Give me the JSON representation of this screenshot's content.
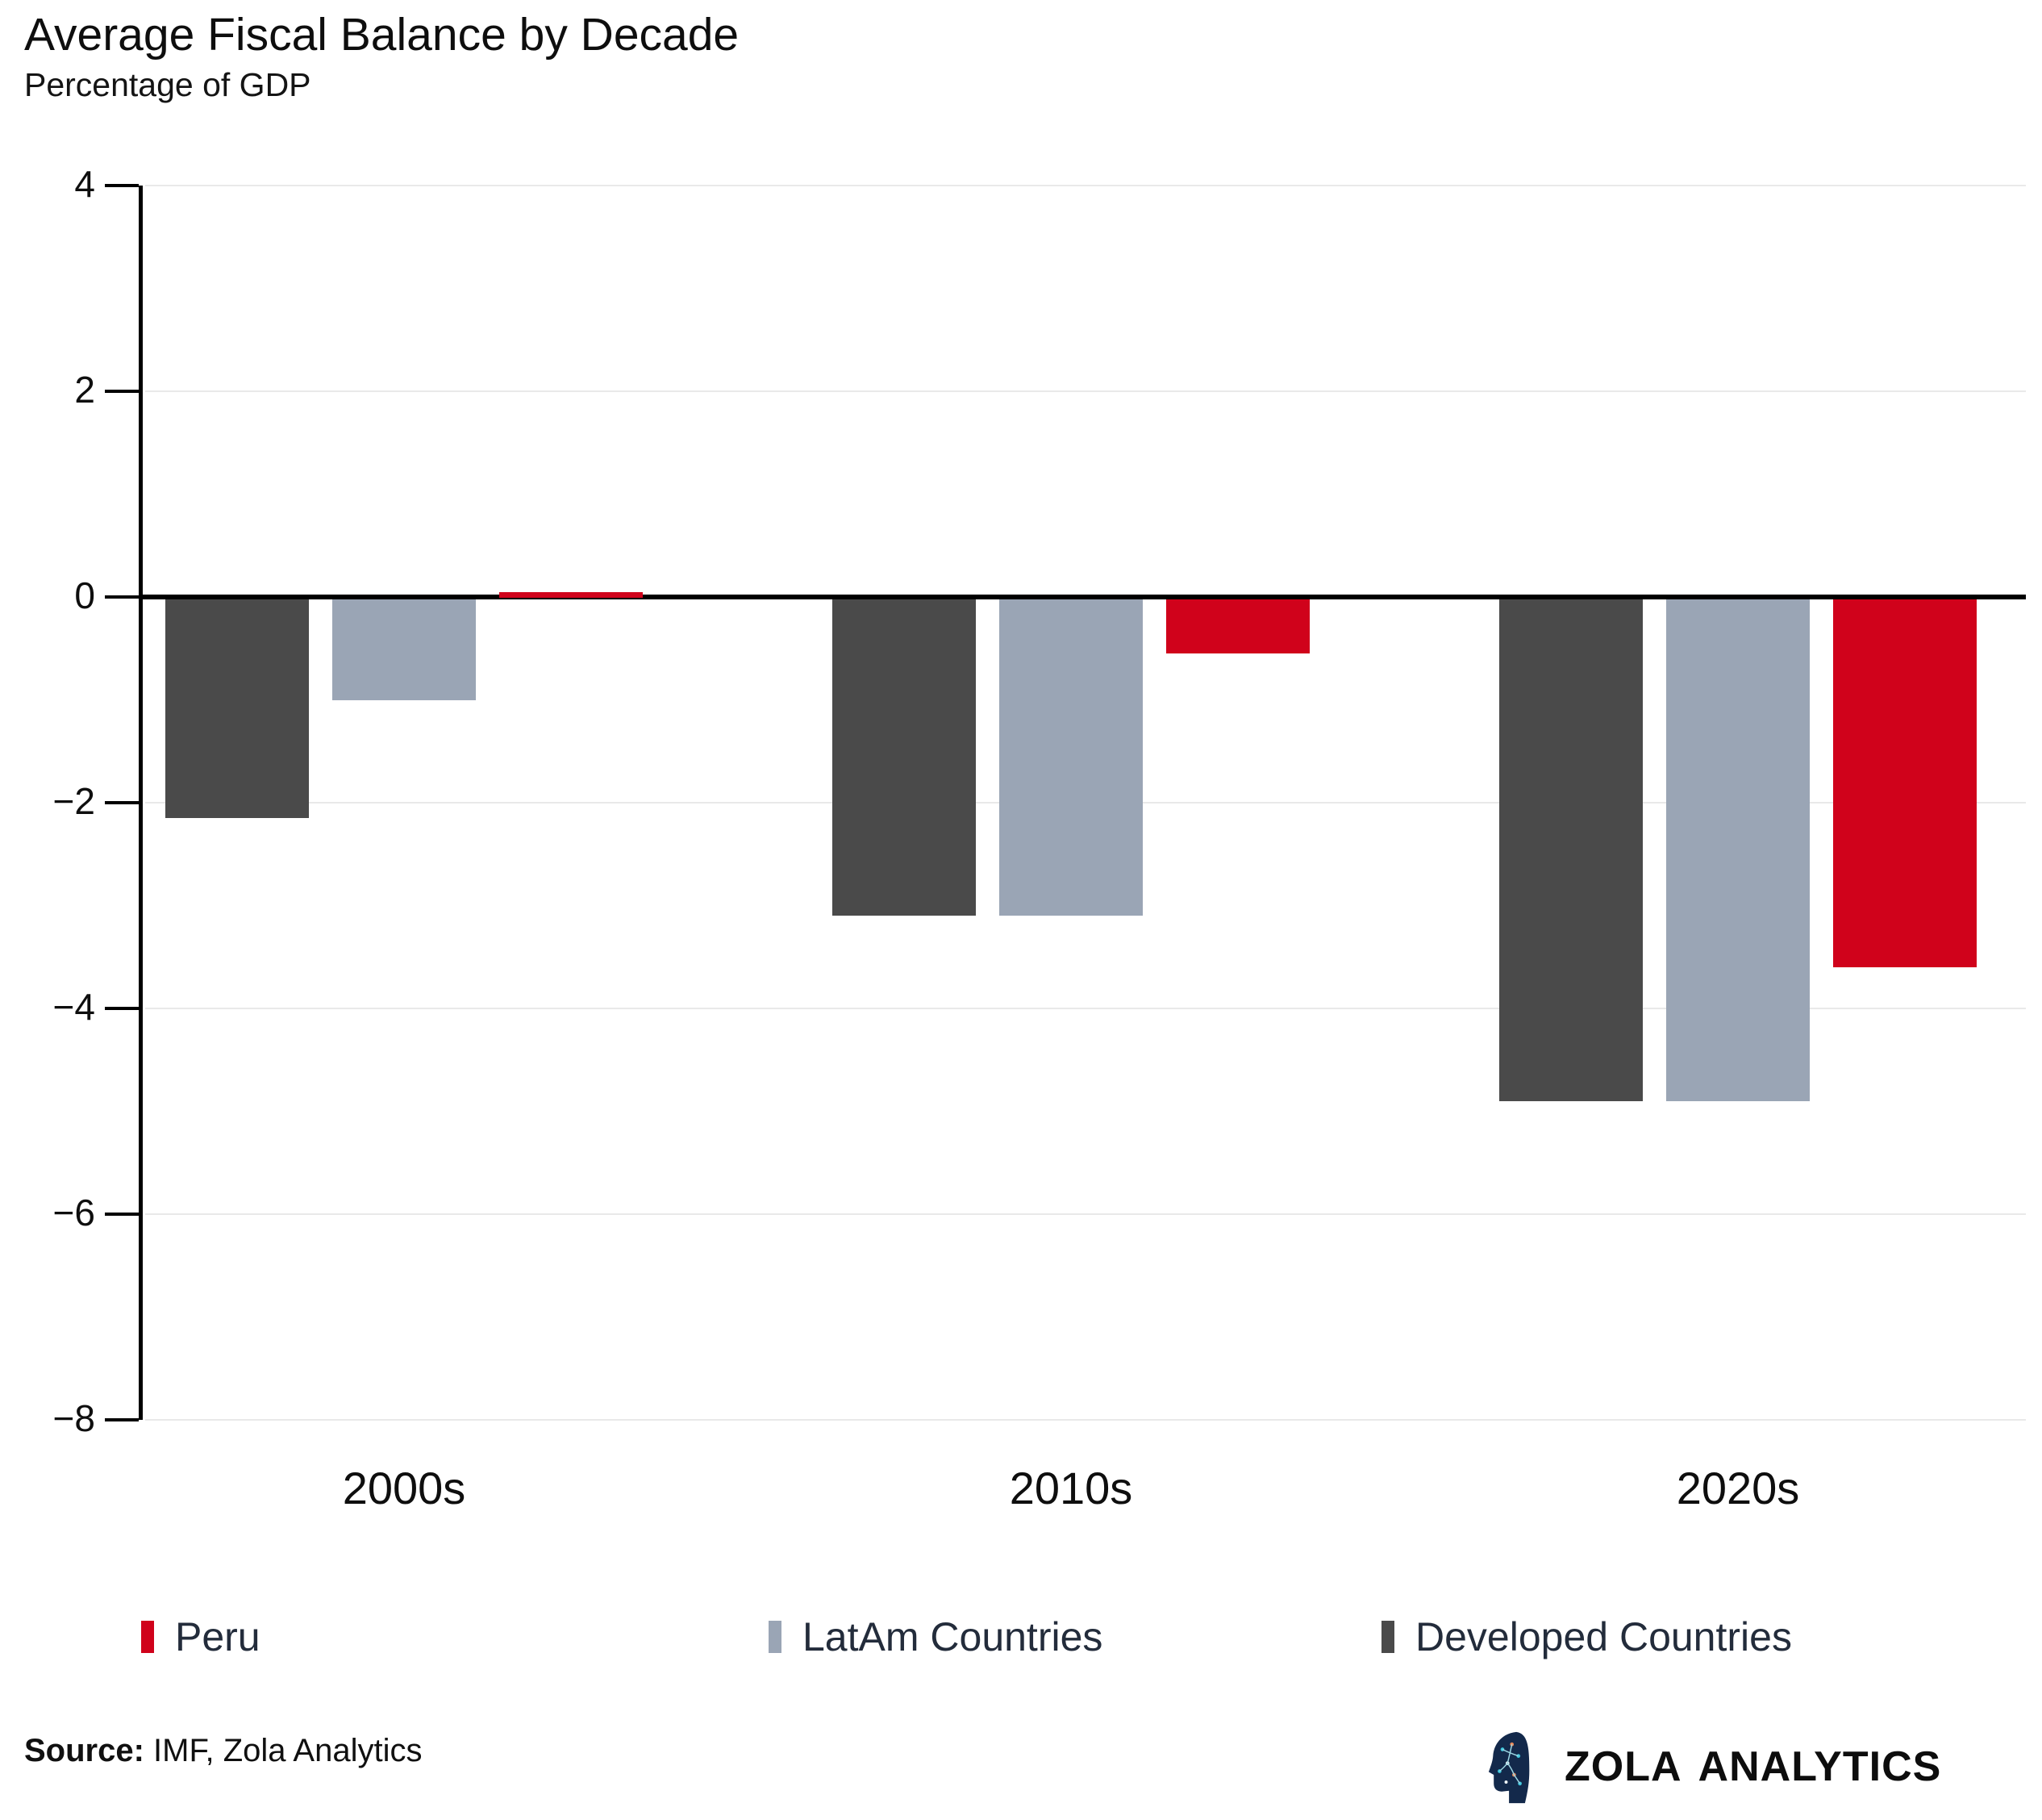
{
  "header": {
    "title": "Average Fiscal Balance by Decade",
    "subtitle": "Percentage of GDP"
  },
  "chart_data": {
    "type": "bar",
    "title": "Average Fiscal Balance by Decade",
    "ylabel": "Percentage of GDP",
    "categories": [
      "2000s",
      "2010s",
      "2020s"
    ],
    "series": [
      {
        "name": "Developed Countries",
        "color": "#4a4a4a",
        "values": [
          -2.15,
          -3.1,
          -4.9
        ]
      },
      {
        "name": "LatAm Countries",
        "color": "#9aa5b5",
        "values": [
          -1.0,
          -3.1,
          -4.9
        ]
      },
      {
        "name": "Peru",
        "color": "#d0021b",
        "values": [
          0.0,
          -0.55,
          -3.6
        ]
      }
    ],
    "ylim": [
      -8,
      4
    ],
    "yticks": [
      4,
      2,
      0,
      -2,
      -4,
      -6,
      -8
    ],
    "ytick_labels": [
      "4",
      "2",
      "0",
      "−2",
      "−4",
      "−6",
      "−8"
    ],
    "grid": true,
    "legend_position": "bottom",
    "legend_order": [
      "Peru",
      "LatAm Countries",
      "Developed Countries"
    ]
  },
  "legend": {
    "items": [
      {
        "label": "Peru",
        "color": "#d0021b"
      },
      {
        "label": "LatAm Countries",
        "color": "#9aa5b5"
      },
      {
        "label": "Developed Countries",
        "color": "#4a4a4a"
      }
    ]
  },
  "footer": {
    "source_label": "Source:",
    "source_text": " IMF, Zola Analytics",
    "brand_word1": "ZOLA",
    "brand_word2": "ANALYTICS"
  },
  "colors": {
    "peru": "#d0021b",
    "latam": "#9aa5b5",
    "developed": "#4a4a4a",
    "gridline": "#e9e9e9",
    "axis": "#000000",
    "legend_text": "#232c3b"
  }
}
